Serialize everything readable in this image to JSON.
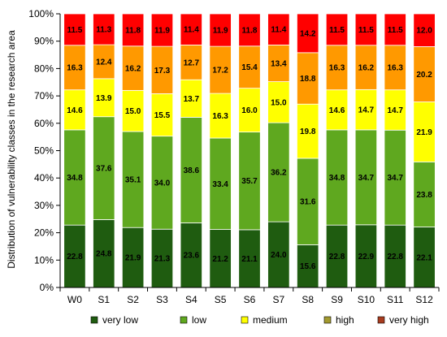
{
  "chart_data": {
    "type": "bar",
    "stacked": true,
    "percent": true,
    "title": "",
    "xlabel": "",
    "ylabel": "Distribution of vulnerability classes in the research area",
    "ylim": [
      0,
      100
    ],
    "yticks": [
      "0%",
      "10%",
      "20%",
      "30%",
      "40%",
      "50%",
      "60%",
      "70%",
      "80%",
      "90%",
      "100%"
    ],
    "grid": false,
    "legend_position": "bottom",
    "categories": [
      "W0",
      "S1",
      "S2",
      "S3",
      "S4",
      "S5",
      "S6",
      "S7",
      "S8",
      "S9",
      "S10",
      "S11",
      "S12"
    ],
    "series": [
      {
        "name": "very low",
        "color": "#1f5c10",
        "label_color": "#000000",
        "values": [
          22.8,
          24.8,
          21.9,
          21.3,
          23.6,
          21.2,
          21.1,
          24.0,
          15.6,
          22.8,
          22.9,
          22.8,
          22.1
        ]
      },
      {
        "name": "low",
        "color": "#5fa81f",
        "label_color": "#000000",
        "values": [
          34.8,
          37.6,
          35.1,
          34.0,
          38.6,
          33.4,
          35.7,
          36.2,
          31.6,
          34.8,
          34.7,
          34.7,
          23.8
        ]
      },
      {
        "name": "medium",
        "color": "#ffff00",
        "label_color": "#000000",
        "values": [
          14.6,
          13.9,
          15.0,
          15.5,
          13.7,
          16.3,
          16.0,
          15.0,
          19.8,
          14.6,
          14.7,
          14.7,
          21.9
        ]
      },
      {
        "name": "high",
        "color": "#ff9900",
        "label_color": "#000000",
        "values": [
          16.3,
          12.4,
          16.2,
          17.3,
          12.7,
          17.2,
          15.4,
          13.4,
          18.8,
          16.3,
          16.2,
          16.3,
          20.2
        ]
      },
      {
        "name": "very high",
        "color": "#ff0000",
        "label_color": "#000000",
        "values": [
          11.5,
          11.3,
          11.8,
          11.9,
          11.4,
          11.9,
          11.8,
          11.4,
          14.2,
          11.5,
          11.5,
          11.5,
          12.0
        ]
      }
    ],
    "legend_swatch_colors": [
      "#1f5c10",
      "#5fa81f",
      "#ffff00",
      "#a39a2f",
      "#a83c1f"
    ]
  }
}
